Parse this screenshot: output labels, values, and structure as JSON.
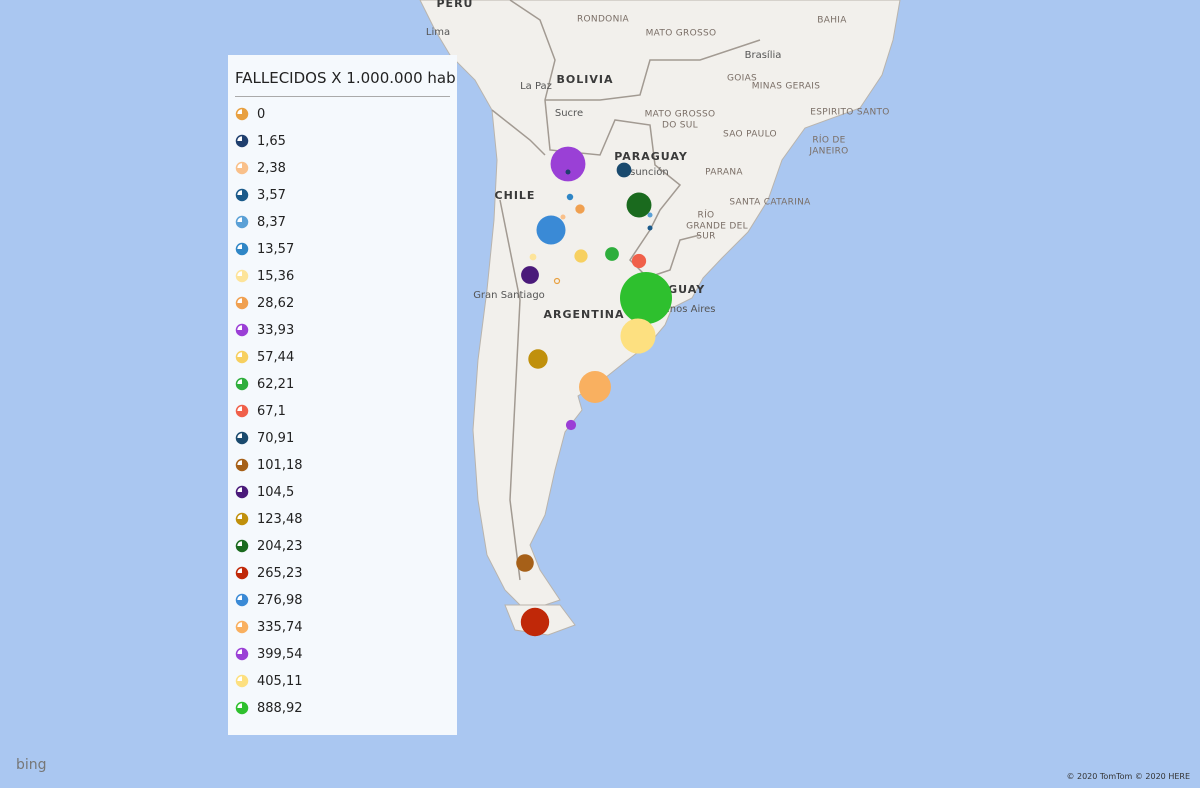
{
  "map": {
    "labels": [
      "PERU",
      "Lima",
      "BOLIVIA",
      "La Paz",
      "Sucre",
      "RONDONIA",
      "MATO GROSSO",
      "BAHIA",
      "Brasília",
      "GOIAS",
      "MINAS GERAIS",
      "ESPIRITO SANTO",
      "MATO GROSSO",
      "DO SUL",
      "SAO PAULO",
      "RÍO DE",
      "JANEIRO",
      "PARAGUAY",
      "Asunción",
      "PARANA",
      "SANTA CATARINA",
      "RÍO",
      "GRANDE DEL",
      "SUR",
      "CHILE",
      "ARGENTINA",
      "Gran Santiago",
      "URUGUAY",
      "Buenos Aires"
    ],
    "attribution": "bing",
    "copyright": "© 2020 TomTom © 2020 HERE"
  },
  "legend": {
    "title": "FALLECIDOS X 1.000.000 hab",
    "items": [
      {
        "value": 0,
        "label": "0",
        "color": "#e8a040"
      },
      {
        "value": 1.65,
        "label": "1,65",
        "color": "#1f3f6e"
      },
      {
        "value": 2.38,
        "label": "2,38",
        "color": "#f9c08a"
      },
      {
        "value": 3.57,
        "label": "3,57",
        "color": "#1b5a8a"
      },
      {
        "value": 8.37,
        "label": "8,37",
        "color": "#5aa0d6"
      },
      {
        "value": 13.57,
        "label": "13,57",
        "color": "#2f86c6"
      },
      {
        "value": 15.36,
        "label": "15,36",
        "color": "#fde49a"
      },
      {
        "value": 28.62,
        "label": "28,62",
        "color": "#f0a050"
      },
      {
        "value": 33.93,
        "label": "33,93",
        "color": "#9b3fd6"
      },
      {
        "value": 57.44,
        "label": "57,44",
        "color": "#f7d060"
      },
      {
        "value": 62.21,
        "label": "62,21",
        "color": "#2eae3c"
      },
      {
        "value": 67.1,
        "label": "67,1",
        "color": "#f0604a"
      },
      {
        "value": 70.91,
        "label": "70,91",
        "color": "#1a4a6e"
      },
      {
        "value": 101.18,
        "label": "101,18",
        "color": "#a66018"
      },
      {
        "value": 104.5,
        "label": "104,5",
        "color": "#4a1a7a"
      },
      {
        "value": 123.48,
        "label": "123,48",
        "color": "#c0900c"
      },
      {
        "value": 204.23,
        "label": "204,23",
        "color": "#1a6a1e"
      },
      {
        "value": 265.23,
        "label": "265,23",
        "color": "#c02808"
      },
      {
        "value": 276.98,
        "label": "276,98",
        "color": "#3a8ad6"
      },
      {
        "value": 335.74,
        "label": "335,74",
        "color": "#f9b060"
      },
      {
        "value": 399.54,
        "label": "399,54",
        "color": "#9a40d6"
      },
      {
        "value": 405.11,
        "label": "405,11",
        "color": "#fde080"
      },
      {
        "value": 888.92,
        "label": "888,92",
        "color": "#2ec02e"
      }
    ]
  }
}
